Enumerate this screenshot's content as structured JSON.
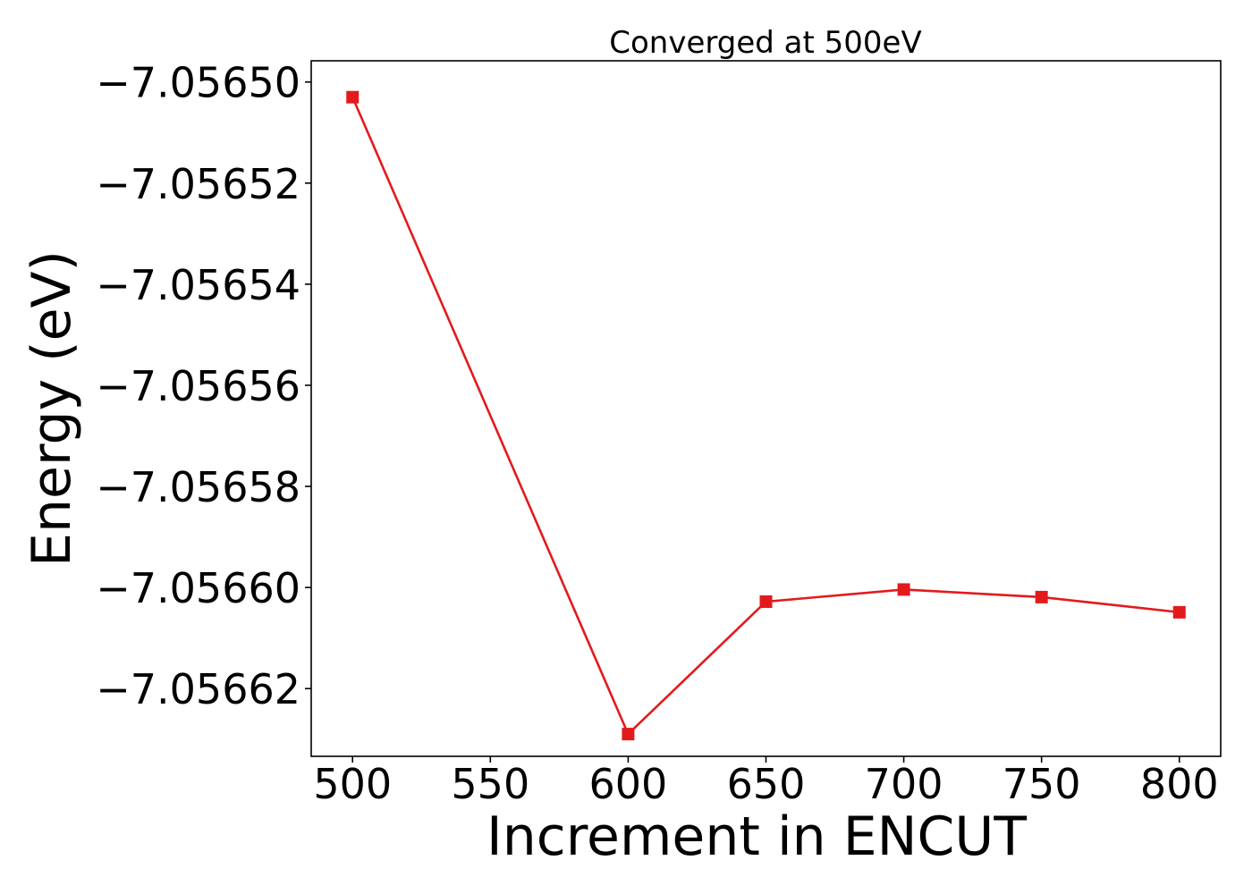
{
  "chart_data": {
    "type": "line",
    "title": "Converged at 500eV",
    "xlabel": "Increment in ENCUT",
    "ylabel": "Energy (eV)",
    "x": [
      500,
      600,
      650,
      700,
      750,
      800
    ],
    "series": [
      {
        "values": [
          -7.056503,
          -7.056629,
          -7.0566028,
          -7.0566004,
          -7.0566019,
          -7.0566049
        ],
        "color": "#e31a1c",
        "marker": "square"
      }
    ],
    "xlim": [
      485,
      815
    ],
    "ylim": [
      -7.0566334,
      -7.0564958
    ],
    "xticks": [
      {
        "value": 500,
        "label": "500"
      },
      {
        "value": 550,
        "label": "550"
      },
      {
        "value": 600,
        "label": "600"
      },
      {
        "value": 650,
        "label": "650"
      },
      {
        "value": 700,
        "label": "700"
      },
      {
        "value": 750,
        "label": "750"
      },
      {
        "value": 800,
        "label": "800"
      }
    ],
    "yticks": [
      {
        "value": -7.0565,
        "label": "−7.05650"
      },
      {
        "value": -7.05652,
        "label": "−7.05652"
      },
      {
        "value": -7.05654,
        "label": "−7.05654"
      },
      {
        "value": -7.05656,
        "label": "−7.05656"
      },
      {
        "value": -7.05658,
        "label": "−7.05658"
      },
      {
        "value": -7.0566,
        "label": "−7.05660"
      },
      {
        "value": -7.05662,
        "label": "−7.05662"
      }
    ],
    "grid": false,
    "legend": "none"
  }
}
